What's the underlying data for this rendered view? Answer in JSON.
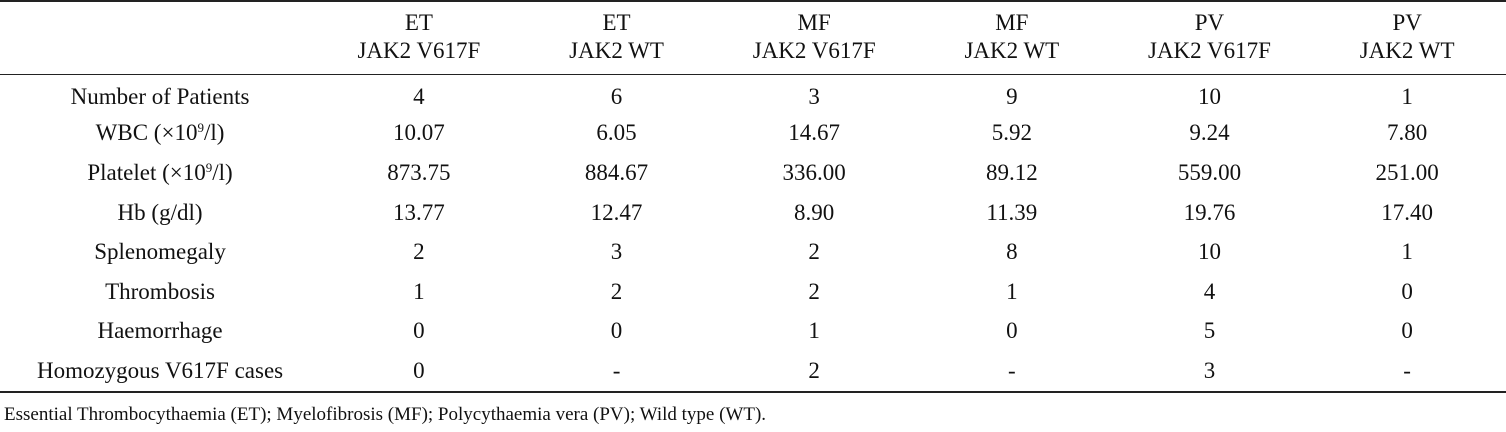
{
  "table": {
    "corner": "",
    "columns": [
      {
        "line1": "ET",
        "line2": "JAK2 V617F"
      },
      {
        "line1": "ET",
        "line2": "JAK2 WT"
      },
      {
        "line1": "MF",
        "line2": "JAK2 V617F"
      },
      {
        "line1": "MF",
        "line2": "JAK2 WT"
      },
      {
        "line1": "PV",
        "line2": "JAK2 V617F"
      },
      {
        "line1": "PV",
        "line2": "JAK2 WT"
      }
    ],
    "rows": [
      {
        "label": "Number of Patients",
        "label_pre": "",
        "label_sup": "",
        "label_post": "",
        "values": [
          "4",
          "6",
          "3",
          "9",
          "10",
          "1"
        ]
      },
      {
        "label": "",
        "label_pre": "WBC (×10",
        "label_sup": "9",
        "label_post": "/l)",
        "values": [
          "10.07",
          "6.05",
          "14.67",
          "5.92",
          "9.24",
          "7.80"
        ]
      },
      {
        "label": "",
        "label_pre": "Platelet (×10",
        "label_sup": "9",
        "label_post": "/l)",
        "values": [
          "873.75",
          "884.67",
          "336.00",
          "89.12",
          "559.00",
          "251.00"
        ]
      },
      {
        "label": "Hb (g/dl)",
        "label_pre": "",
        "label_sup": "",
        "label_post": "",
        "values": [
          "13.77",
          "12.47",
          "8.90",
          "11.39",
          "19.76",
          "17.40"
        ]
      },
      {
        "label": "Splenomegaly",
        "label_pre": "",
        "label_sup": "",
        "label_post": "",
        "values": [
          "2",
          "3",
          "2",
          "8",
          "10",
          "1"
        ]
      },
      {
        "label": "Thrombosis",
        "label_pre": "",
        "label_sup": "",
        "label_post": "",
        "values": [
          "1",
          "2",
          "2",
          "1",
          "4",
          "0"
        ]
      },
      {
        "label": "Haemorrhage",
        "label_pre": "",
        "label_sup": "",
        "label_post": "",
        "values": [
          "0",
          "0",
          "1",
          "0",
          "5",
          "0"
        ]
      },
      {
        "label": "Homozygous V617F cases",
        "label_pre": "",
        "label_sup": "",
        "label_post": "",
        "values": [
          "0",
          "-",
          "2",
          "-",
          "3",
          "-"
        ]
      }
    ]
  },
  "footnote": "Essential Thrombocythaemia (ET); Myelofibrosis (MF); Polycythaemia vera (PV); Wild type (WT)."
}
